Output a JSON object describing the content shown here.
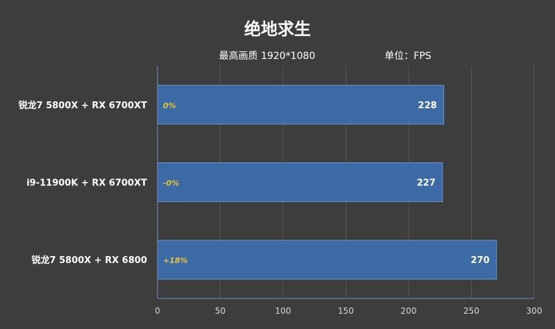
{
  "chart_data": {
    "type": "bar",
    "orientation": "horizontal",
    "title": "绝地求生",
    "subtitle_left": "最高画质 1920*1080",
    "subtitle_right": "单位：FPS",
    "categories": [
      "锐龙7 5800X + RX 6700XT",
      "i9-11900K + RX 6700XT",
      "锐龙7 5800X + RX 6800"
    ],
    "values": [
      228,
      227,
      270
    ],
    "bar_labels": [
      "0%",
      "-0%",
      "+18%"
    ],
    "xlim": [
      0,
      300
    ],
    "xticks": [
      0,
      50,
      100,
      150,
      200,
      250,
      300
    ],
    "grid": true,
    "colors": {
      "background": "#3d3d3d",
      "bar": "#3b6aa5",
      "bar_edge": "#6d95c9",
      "pct_text": "#e8c33a",
      "grid": "#555555"
    }
  }
}
